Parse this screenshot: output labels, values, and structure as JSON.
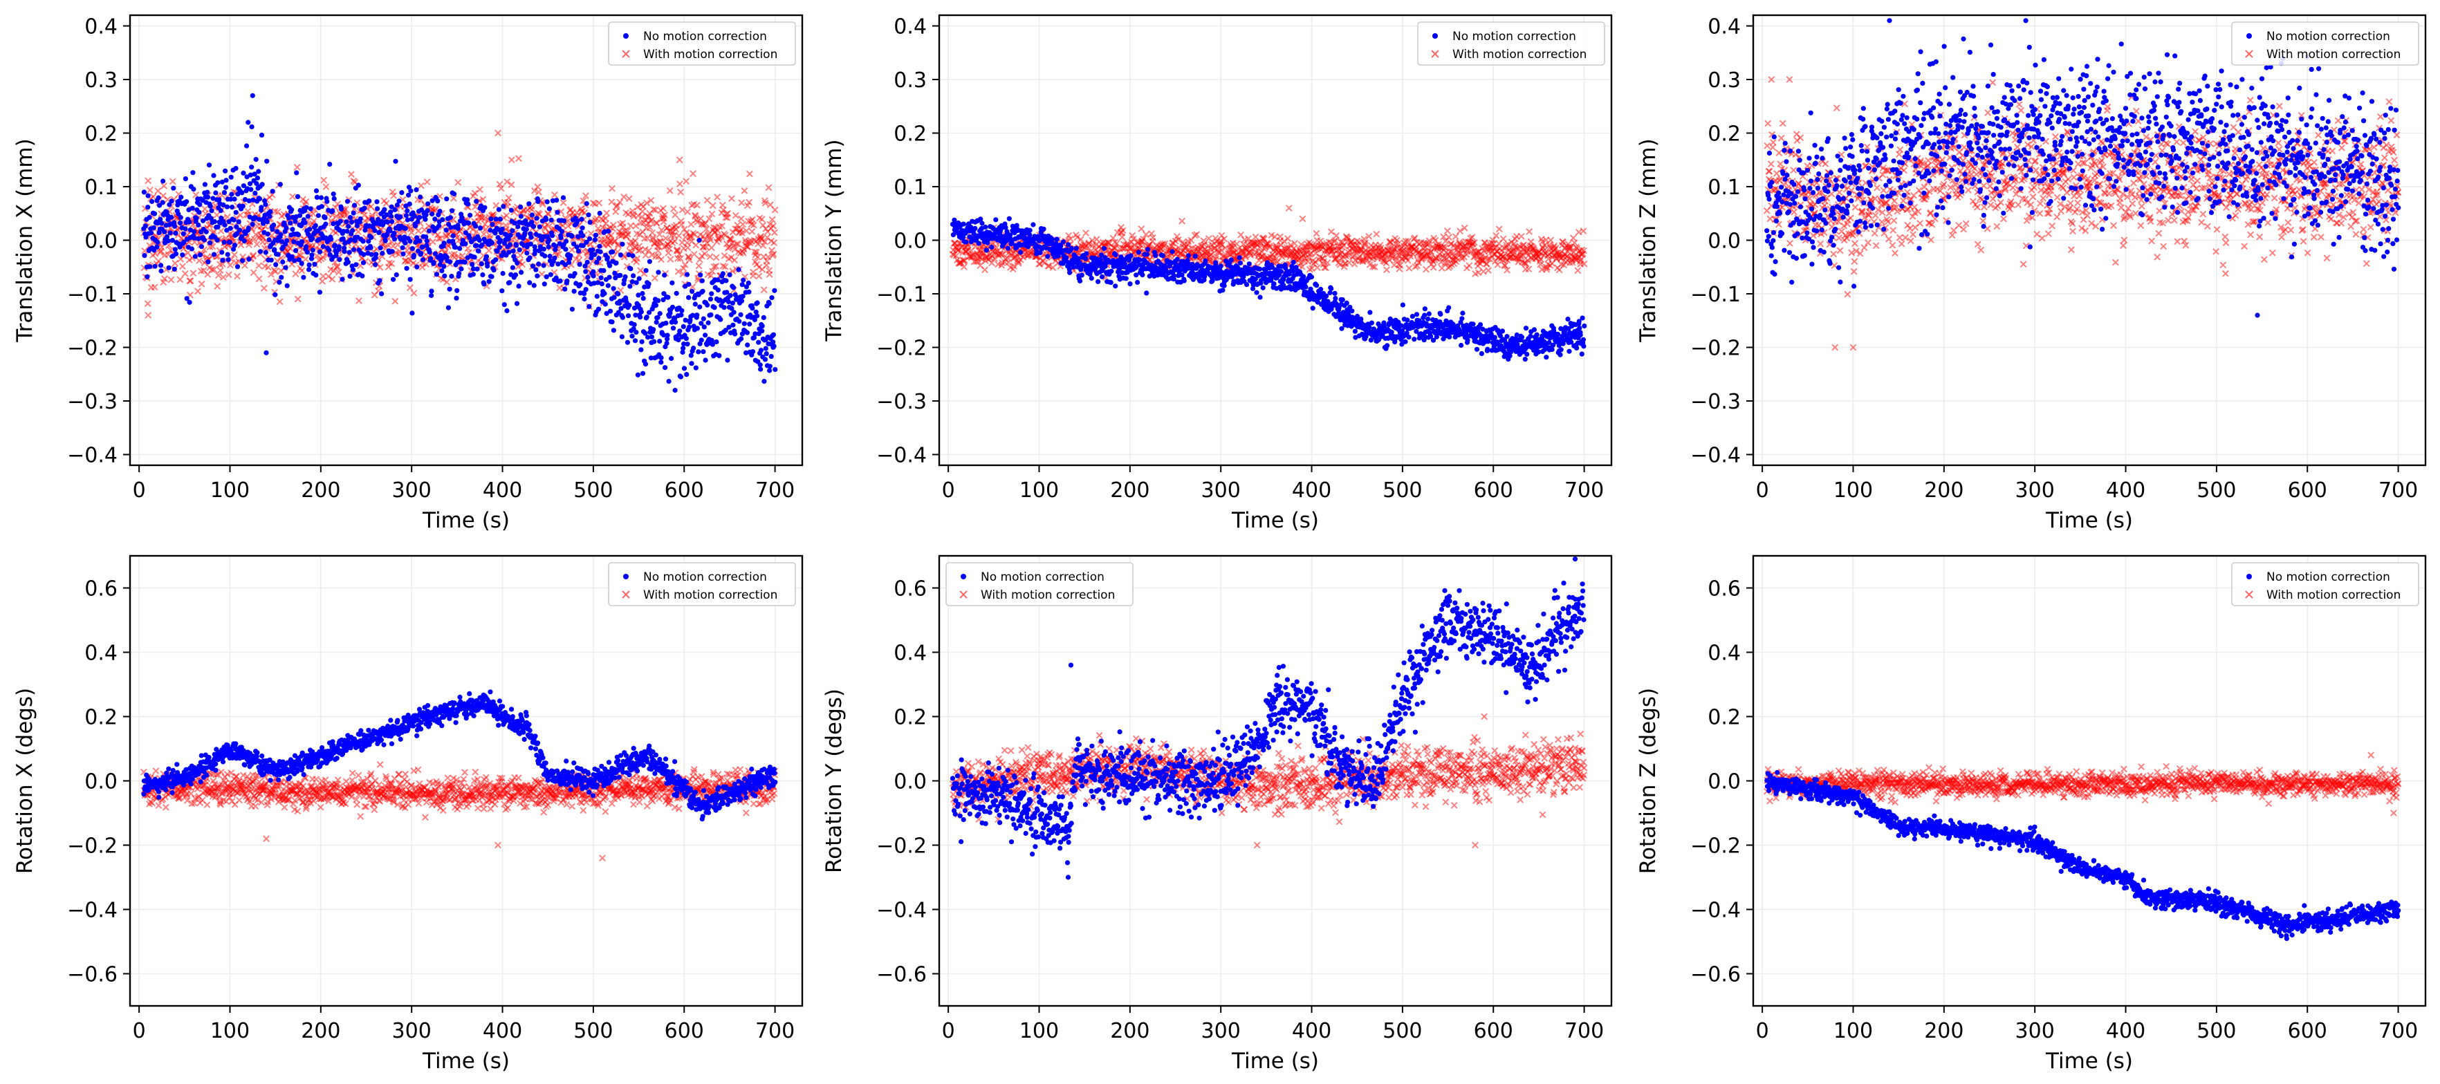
{
  "chart_data": [
    {
      "type": "scatter",
      "xlabel": "Time (s)",
      "ylabel": "Translation X (mm)",
      "xlim": [
        -10,
        730
      ],
      "ylim": [
        -0.42,
        0.42
      ],
      "xticks": [
        0,
        100,
        200,
        300,
        400,
        500,
        600,
        700
      ],
      "xtick_labels": [
        "0",
        "100",
        "200",
        "300",
        "400",
        "500",
        "600",
        "700"
      ],
      "yticks": [
        -0.4,
        -0.3,
        -0.2,
        -0.1,
        0.0,
        0.1,
        0.2,
        0.3,
        0.4
      ],
      "ytick_labels": [
        "−0.4",
        "−0.3",
        "−0.2",
        "−0.1",
        "0.0",
        "0.1",
        "0.2",
        "0.3",
        "0.4"
      ],
      "grid": true,
      "legend_position": "upper-right",
      "series": [
        {
          "name": "No motion correction",
          "marker": "dot",
          "color": "#0000ff",
          "x_range": [
            5,
            700
          ],
          "trend": [
            [
              0,
              0.02
            ],
            [
              100,
              0.05
            ],
            [
              130,
              0.08
            ],
            [
              150,
              0.0
            ],
            [
              300,
              0.02
            ],
            [
              400,
              -0.02
            ],
            [
              460,
              0.0
            ],
            [
              510,
              -0.05
            ],
            [
              540,
              -0.13
            ],
            [
              600,
              -0.17
            ],
            [
              650,
              -0.12
            ],
            [
              700,
              -0.2
            ]
          ],
          "spread": [
            [
              0,
              0.07
            ],
            [
              500,
              0.07
            ],
            [
              520,
              0.08
            ],
            [
              700,
              0.07
            ]
          ],
          "outliers": [
            [
              125,
              0.27
            ],
            [
              120,
              0.22
            ],
            [
              140,
              -0.21
            ],
            [
              590,
              -0.28
            ]
          ]
        },
        {
          "name": "With motion correction",
          "marker": "x",
          "color": "#ff0000",
          "x_range": [
            5,
            700
          ],
          "trend": [
            [
              0,
              0.0
            ],
            [
              400,
              0.01
            ],
            [
              700,
              0.0
            ]
          ],
          "spread": [
            [
              0,
              0.07
            ],
            [
              700,
              0.07
            ]
          ],
          "outliers": [
            [
              395,
              0.2
            ],
            [
              595,
              0.15
            ],
            [
              410,
              0.15
            ],
            [
              10,
              -0.14
            ]
          ]
        }
      ]
    },
    {
      "type": "scatter",
      "xlabel": "Time (s)",
      "ylabel": "Translation Y (mm)",
      "xlim": [
        -10,
        730
      ],
      "ylim": [
        -0.42,
        0.42
      ],
      "xticks": [
        0,
        100,
        200,
        300,
        400,
        500,
        600,
        700
      ],
      "xtick_labels": [
        "0",
        "100",
        "200",
        "300",
        "400",
        "500",
        "600",
        "700"
      ],
      "yticks": [
        -0.4,
        -0.3,
        -0.2,
        -0.1,
        0.0,
        0.1,
        0.2,
        0.3,
        0.4
      ],
      "ytick_labels": [
        "−0.4",
        "−0.3",
        "−0.2",
        "−0.1",
        "0.0",
        "0.1",
        "0.2",
        "0.3",
        "0.4"
      ],
      "grid": true,
      "legend_position": "upper-right",
      "series": [
        {
          "name": "No motion correction",
          "marker": "dot",
          "color": "#0000ff",
          "x_range": [
            5,
            700
          ],
          "trend": [
            [
              0,
              0.02
            ],
            [
              100,
              0.0
            ],
            [
              150,
              -0.05
            ],
            [
              250,
              -0.05
            ],
            [
              300,
              -0.06
            ],
            [
              380,
              -0.07
            ],
            [
              430,
              -0.13
            ],
            [
              460,
              -0.17
            ],
            [
              550,
              -0.16
            ],
            [
              620,
              -0.2
            ],
            [
              700,
              -0.18
            ]
          ],
          "spread": [
            [
              0,
              0.02
            ],
            [
              700,
              0.022
            ]
          ],
          "outliers": []
        },
        {
          "name": "With motion correction",
          "marker": "x",
          "color": "#ff0000",
          "x_range": [
            5,
            700
          ],
          "trend": [
            [
              0,
              -0.02
            ],
            [
              700,
              -0.025
            ]
          ],
          "spread": [
            [
              0,
              0.025
            ],
            [
              700,
              0.025
            ]
          ],
          "outliers": [
            [
              375,
              0.06
            ],
            [
              390,
              0.04
            ]
          ]
        }
      ]
    },
    {
      "type": "scatter",
      "xlabel": "Time (s)",
      "ylabel": "Translation Z (mm)",
      "xlim": [
        -10,
        730
      ],
      "ylim": [
        -0.42,
        0.42
      ],
      "xticks": [
        0,
        100,
        200,
        300,
        400,
        500,
        600,
        700
      ],
      "xtick_labels": [
        "0",
        "100",
        "200",
        "300",
        "400",
        "500",
        "600",
        "700"
      ],
      "yticks": [
        -0.4,
        -0.3,
        -0.2,
        -0.1,
        0.0,
        0.1,
        0.2,
        0.3,
        0.4
      ],
      "ytick_labels": [
        "−0.4",
        "−0.3",
        "−0.2",
        "−0.1",
        "0.0",
        "0.1",
        "0.2",
        "0.3",
        "0.4"
      ],
      "grid": true,
      "legend_position": "upper-right",
      "series": [
        {
          "name": "No motion correction",
          "marker": "dot",
          "color": "#0000ff",
          "x_range": [
            5,
            700
          ],
          "trend": [
            [
              0,
              0.06
            ],
            [
              80,
              0.08
            ],
            [
              150,
              0.17
            ],
            [
              300,
              0.2
            ],
            [
              500,
              0.18
            ],
            [
              600,
              0.15
            ],
            [
              700,
              0.1
            ]
          ],
          "spread": [
            [
              0,
              0.1
            ],
            [
              700,
              0.11
            ]
          ],
          "outliers": [
            [
              140,
              0.41
            ],
            [
              290,
              0.41
            ],
            [
              545,
              -0.14
            ]
          ]
        },
        {
          "name": "With motion correction",
          "marker": "x",
          "color": "#ff0000",
          "x_range": [
            5,
            700
          ],
          "trend": [
            [
              0,
              0.12
            ],
            [
              100,
              0.05
            ],
            [
              200,
              0.12
            ],
            [
              700,
              0.1
            ]
          ],
          "spread": [
            [
              0,
              0.09
            ],
            [
              700,
              0.09
            ]
          ],
          "outliers": [
            [
              80,
              -0.2
            ],
            [
              100,
              -0.2
            ],
            [
              10,
              0.3
            ],
            [
              30,
              0.3
            ]
          ]
        }
      ]
    },
    {
      "type": "scatter",
      "xlabel": "Time (s)",
      "ylabel": "Rotation X (degs)",
      "xlim": [
        -10,
        730
      ],
      "ylim": [
        -0.7,
        0.7
      ],
      "xticks": [
        0,
        100,
        200,
        300,
        400,
        500,
        600,
        700
      ],
      "xtick_labels": [
        "0",
        "100",
        "200",
        "300",
        "400",
        "500",
        "600",
        "700"
      ],
      "yticks": [
        -0.6,
        -0.4,
        -0.2,
        0.0,
        0.2,
        0.4,
        0.6
      ],
      "ytick_labels": [
        "−0.6",
        "−0.4",
        "−0.2",
        "0.0",
        "0.2",
        "0.4",
        "0.6"
      ],
      "grid": true,
      "legend_position": "upper-right",
      "series": [
        {
          "name": "No motion correction",
          "marker": "dot",
          "color": "#0000ff",
          "x_range": [
            5,
            700
          ],
          "trend": [
            [
              0,
              -0.02
            ],
            [
              60,
              0.02
            ],
            [
              100,
              0.1
            ],
            [
              150,
              0.03
            ],
            [
              250,
              0.13
            ],
            [
              320,
              0.2
            ],
            [
              380,
              0.24
            ],
            [
              430,
              0.15
            ],
            [
              450,
              0.02
            ],
            [
              500,
              0.0
            ],
            [
              560,
              0.08
            ],
            [
              620,
              -0.08
            ],
            [
              700,
              0.02
            ]
          ],
          "spread": [
            [
              0,
              0.025
            ],
            [
              700,
              0.03
            ]
          ],
          "outliers": []
        },
        {
          "name": "With motion correction",
          "marker": "x",
          "color": "#ff0000",
          "x_range": [
            5,
            700
          ],
          "trend": [
            [
              0,
              -0.02
            ],
            [
              350,
              -0.04
            ],
            [
              700,
              -0.02
            ]
          ],
          "spread": [
            [
              0,
              0.04
            ],
            [
              700,
              0.04
            ]
          ],
          "outliers": [
            [
              510,
              -0.24
            ],
            [
              395,
              -0.2
            ],
            [
              140,
              -0.18
            ]
          ]
        }
      ]
    },
    {
      "type": "scatter",
      "xlabel": "Time (s)",
      "ylabel": "Rotation Y (degs)",
      "xlim": [
        -10,
        730
      ],
      "ylim": [
        -0.7,
        0.7
      ],
      "xticks": [
        0,
        100,
        200,
        300,
        400,
        500,
        600,
        700
      ],
      "xtick_labels": [
        "0",
        "100",
        "200",
        "300",
        "400",
        "500",
        "600",
        "700"
      ],
      "yticks": [
        -0.6,
        -0.4,
        -0.2,
        0.0,
        0.2,
        0.4,
        0.6
      ],
      "ytick_labels": [
        "−0.6",
        "−0.4",
        "−0.2",
        "0.0",
        "0.2",
        "0.4",
        "0.6"
      ],
      "grid": true,
      "legend_position": "upper-left",
      "series": [
        {
          "name": "No motion correction",
          "marker": "dot",
          "color": "#0000ff",
          "x_range": [
            5,
            700
          ],
          "trend": [
            [
              0,
              -0.02
            ],
            [
              60,
              -0.05
            ],
            [
              130,
              -0.15
            ],
            [
              140,
              0.05
            ],
            [
              200,
              0.0
            ],
            [
              300,
              0.0
            ],
            [
              340,
              0.1
            ],
            [
              360,
              0.25
            ],
            [
              400,
              0.22
            ],
            [
              430,
              0.05
            ],
            [
              470,
              0.0
            ],
            [
              500,
              0.25
            ],
            [
              550,
              0.5
            ],
            [
              600,
              0.45
            ],
            [
              640,
              0.35
            ],
            [
              700,
              0.55
            ]
          ],
          "spread": [
            [
              0,
              0.08
            ],
            [
              700,
              0.08
            ]
          ],
          "outliers": [
            [
              135,
              0.36
            ],
            [
              132,
              -0.3
            ],
            [
              690,
              0.69
            ]
          ]
        },
        {
          "name": "With motion correction",
          "marker": "x",
          "color": "#ff0000",
          "x_range": [
            5,
            700
          ],
          "trend": [
            [
              0,
              -0.02
            ],
            [
              200,
              0.05
            ],
            [
              350,
              -0.02
            ],
            [
              500,
              0.02
            ],
            [
              700,
              0.05
            ]
          ],
          "spread": [
            [
              0,
              0.06
            ],
            [
              700,
              0.07
            ]
          ],
          "outliers": [
            [
              340,
              -0.2
            ],
            [
              580,
              -0.2
            ],
            [
              590,
              0.2
            ]
          ]
        }
      ]
    },
    {
      "type": "scatter",
      "xlabel": "Time (s)",
      "ylabel": "Rotation Z (degs)",
      "xlim": [
        -10,
        730
      ],
      "ylim": [
        -0.7,
        0.7
      ],
      "xticks": [
        0,
        100,
        200,
        300,
        400,
        500,
        600,
        700
      ],
      "xtick_labels": [
        "0",
        "100",
        "200",
        "300",
        "400",
        "500",
        "600",
        "700"
      ],
      "yticks": [
        -0.6,
        -0.4,
        -0.2,
        0.0,
        0.2,
        0.4,
        0.6
      ],
      "ytick_labels": [
        "−0.6",
        "−0.4",
        "−0.2",
        "0.0",
        "0.2",
        "0.4",
        "0.6"
      ],
      "grid": true,
      "legend_position": "upper-right",
      "series": [
        {
          "name": "No motion correction",
          "marker": "dot",
          "color": "#0000ff",
          "x_range": [
            5,
            700
          ],
          "trend": [
            [
              0,
              0.0
            ],
            [
              100,
              -0.05
            ],
            [
              150,
              -0.14
            ],
            [
              200,
              -0.15
            ],
            [
              300,
              -0.19
            ],
            [
              350,
              -0.27
            ],
            [
              400,
              -0.3
            ],
            [
              420,
              -0.36
            ],
            [
              500,
              -0.38
            ],
            [
              580,
              -0.45
            ],
            [
              700,
              -0.4
            ]
          ],
          "spread": [
            [
              0,
              0.02
            ],
            [
              700,
              0.025
            ]
          ],
          "outliers": []
        },
        {
          "name": "With motion correction",
          "marker": "x",
          "color": "#ff0000",
          "x_range": [
            5,
            700
          ],
          "trend": [
            [
              0,
              -0.01
            ],
            [
              700,
              -0.01
            ]
          ],
          "spread": [
            [
              0,
              0.03
            ],
            [
              700,
              0.03
            ]
          ],
          "outliers": [
            [
              670,
              0.08
            ],
            [
              695,
              -0.1
            ]
          ]
        }
      ]
    }
  ]
}
